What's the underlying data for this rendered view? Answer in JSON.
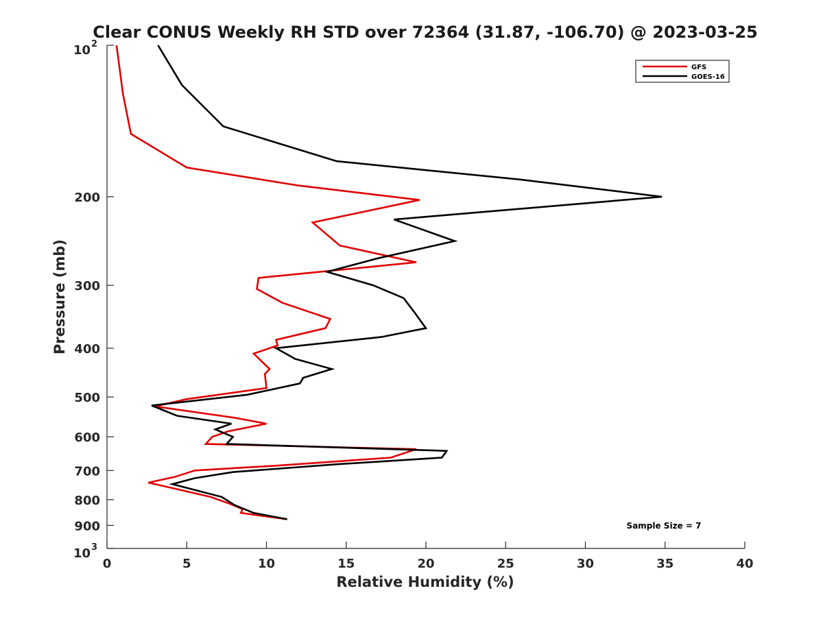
{
  "chart_data": {
    "type": "line",
    "title": "Clear CONUS Weekly RH STD over 72364 (31.87, -106.70) @ 2023-03-25",
    "xlabel": "Relative Humidity (%)",
    "ylabel": "Pressure (mb)",
    "xlim": [
      0,
      40
    ],
    "ylim": [
      100,
      1000
    ],
    "y_scale": "log",
    "y_reversed": true,
    "x_ticks": [
      0,
      5,
      10,
      15,
      20,
      25,
      30,
      35,
      40
    ],
    "x_tick_labels": [
      "0",
      "5",
      "10",
      "15",
      "20",
      "25",
      "30",
      "35",
      "40"
    ],
    "y_ticks": [
      {
        "value": 100,
        "base": "10",
        "exp": "2"
      },
      {
        "value": 200,
        "label": "200"
      },
      {
        "value": 300,
        "label": "300"
      },
      {
        "value": 400,
        "label": "400"
      },
      {
        "value": 500,
        "label": "500"
      },
      {
        "value": 600,
        "label": "600"
      },
      {
        "value": 700,
        "label": "700"
      },
      {
        "value": 800,
        "label": "800"
      },
      {
        "value": 900,
        "label": "900"
      },
      {
        "value": 1000,
        "base": "10",
        "exp": "3"
      }
    ],
    "grid": false,
    "legend_position": "top-right",
    "annotation": "Sample Size = 7",
    "series": [
      {
        "name": "GFS",
        "color": "#e00000",
        "points": [
          [
            0.6,
            100
          ],
          [
            1.0,
            125
          ],
          [
            1.5,
            150
          ],
          [
            5.0,
            175
          ],
          [
            12.0,
            190
          ],
          [
            19.6,
            203
          ],
          [
            12.9,
            225
          ],
          [
            14.6,
            250
          ],
          [
            19.4,
            270
          ],
          [
            9.5,
            290
          ],
          [
            9.4,
            305
          ],
          [
            11.0,
            325
          ],
          [
            14.0,
            350
          ],
          [
            13.7,
            365
          ],
          [
            10.6,
            385
          ],
          [
            10.7,
            395
          ],
          [
            9.2,
            410
          ],
          [
            10.2,
            440
          ],
          [
            9.9,
            450
          ],
          [
            10.0,
            480
          ],
          [
            5.0,
            505
          ],
          [
            3.0,
            522
          ],
          [
            8.0,
            550
          ],
          [
            10.0,
            565
          ],
          [
            7.6,
            585
          ],
          [
            6.6,
            600
          ],
          [
            6.2,
            620
          ],
          [
            19.4,
            635
          ],
          [
            17.8,
            660
          ],
          [
            10.5,
            685
          ],
          [
            5.5,
            700
          ],
          [
            4.3,
            720
          ],
          [
            2.6,
            740
          ],
          [
            4.2,
            760
          ],
          [
            6.5,
            790
          ],
          [
            7.7,
            815
          ],
          [
            8.5,
            835
          ],
          [
            8.4,
            850
          ],
          [
            11.3,
            875
          ]
        ]
      },
      {
        "name": "GOES-16",
        "color": "#000000",
        "points": [
          [
            3.2,
            100
          ],
          [
            4.7,
            120
          ],
          [
            7.3,
            145
          ],
          [
            14.4,
            170
          ],
          [
            26.0,
            185
          ],
          [
            34.8,
            200
          ],
          [
            18.0,
            222
          ],
          [
            21.8,
            245
          ],
          [
            17.0,
            265
          ],
          [
            13.8,
            282
          ],
          [
            16.7,
            300
          ],
          [
            18.6,
            318
          ],
          [
            19.3,
            340
          ],
          [
            20.0,
            365
          ],
          [
            17.2,
            380
          ],
          [
            10.6,
            400
          ],
          [
            11.8,
            420
          ],
          [
            14.1,
            440
          ],
          [
            12.3,
            458
          ],
          [
            12.1,
            470
          ],
          [
            8.8,
            495
          ],
          [
            2.8,
            520
          ],
          [
            4.4,
            545
          ],
          [
            7.8,
            565
          ],
          [
            6.8,
            580
          ],
          [
            7.9,
            600
          ],
          [
            7.5,
            620
          ],
          [
            21.3,
            640
          ],
          [
            21.0,
            660
          ],
          [
            14.5,
            680
          ],
          [
            7.9,
            705
          ],
          [
            5.5,
            725
          ],
          [
            4.1,
            745
          ],
          [
            5.5,
            765
          ],
          [
            7.2,
            790
          ],
          [
            8.0,
            820
          ],
          [
            9.2,
            850
          ],
          [
            11.3,
            875
          ]
        ]
      }
    ]
  }
}
